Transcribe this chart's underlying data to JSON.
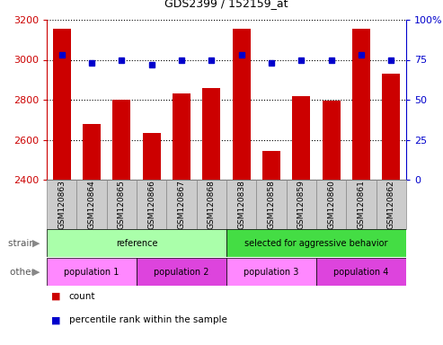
{
  "title": "GDS2399 / 152159_at",
  "samples": [
    "GSM120863",
    "GSM120864",
    "GSM120865",
    "GSM120866",
    "GSM120867",
    "GSM120868",
    "GSM120838",
    "GSM120858",
    "GSM120859",
    "GSM120860",
    "GSM120861",
    "GSM120862"
  ],
  "counts": [
    3155,
    2680,
    2800,
    2635,
    2830,
    2860,
    3155,
    2545,
    2820,
    2795,
    3155,
    2930
  ],
  "percentiles": [
    78,
    73,
    75,
    72,
    75,
    75,
    78,
    73,
    75,
    75,
    78,
    75
  ],
  "ymin": 2400,
  "ymax": 3200,
  "yticks": [
    2400,
    2600,
    2800,
    3000,
    3200
  ],
  "y2min": 0,
  "y2max": 100,
  "y2ticks": [
    0,
    25,
    50,
    75,
    100
  ],
  "y2ticklabels": [
    "0",
    "25",
    "50",
    "75",
    "100%"
  ],
  "bar_color": "#cc0000",
  "dot_color": "#0000cc",
  "strain_groups": [
    {
      "label": "reference",
      "start": 0,
      "end": 6,
      "color": "#aaffaa"
    },
    {
      "label": "selected for aggressive behavior",
      "start": 6,
      "end": 12,
      "color": "#44dd44"
    }
  ],
  "other_groups": [
    {
      "label": "population 1",
      "start": 0,
      "end": 3,
      "color": "#ff88ff"
    },
    {
      "label": "population 2",
      "start": 3,
      "end": 6,
      "color": "#dd44dd"
    },
    {
      "label": "population 3",
      "start": 6,
      "end": 9,
      "color": "#ff88ff"
    },
    {
      "label": "population 4",
      "start": 9,
      "end": 12,
      "color": "#dd44dd"
    }
  ],
  "xtick_bg": "#cccccc",
  "xtick_edge": "#888888"
}
